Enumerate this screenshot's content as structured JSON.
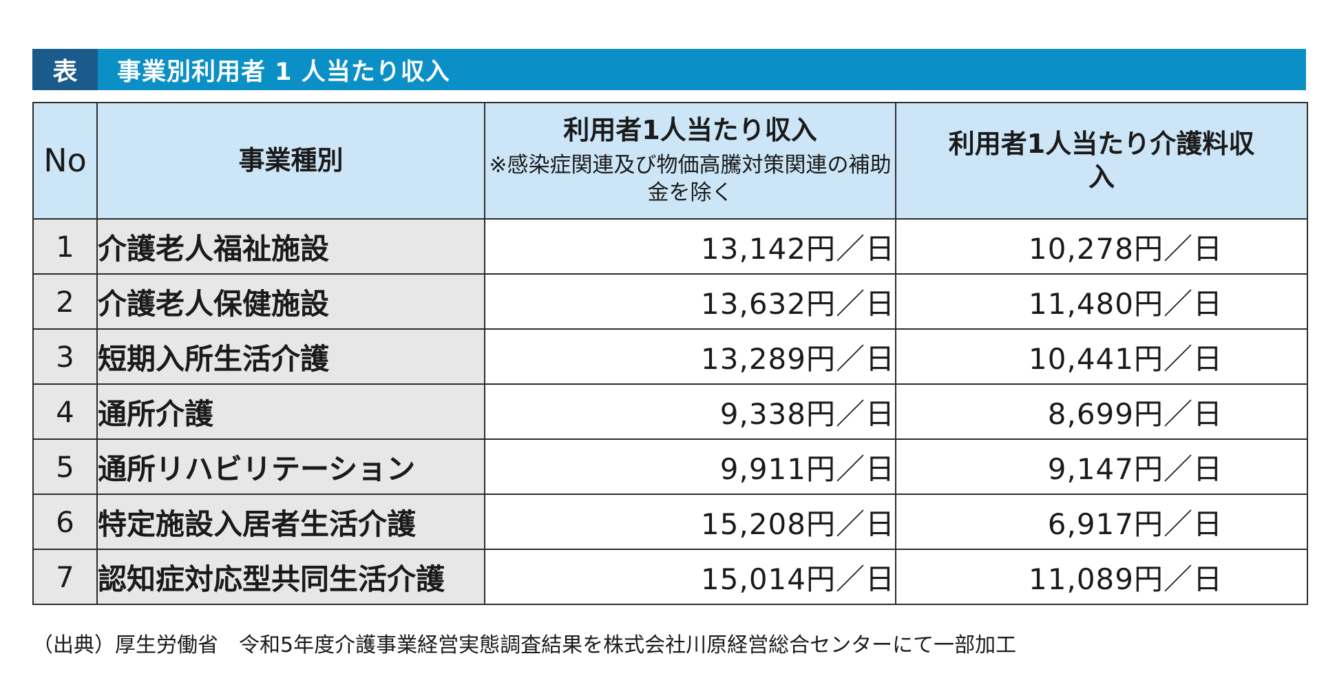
{
  "title": {
    "tag": "表",
    "text": "事業別利用者 1 人当たり収入"
  },
  "table": {
    "headers": {
      "no": "No",
      "type": "事業種別",
      "income_main": "利用者1人当たり収入",
      "income_note": "※感染症関連及び物価高騰対策関連の補助金を除く",
      "care_fee": "利用者1人当たり介護料収入"
    },
    "rows": [
      {
        "no": "1",
        "type": "介護老人福祉施設",
        "income": "13,142円／日",
        "care_fee": "10,278円／日"
      },
      {
        "no": "2",
        "type": "介護老人保健施設",
        "income": "13,632円／日",
        "care_fee": "11,480円／日"
      },
      {
        "no": "3",
        "type": "短期入所生活介護",
        "income": "13,289円／日",
        "care_fee": "10,441円／日"
      },
      {
        "no": "4",
        "type": "通所介護",
        "income": "9,338円／日",
        "care_fee": "8,699円／日"
      },
      {
        "no": "5",
        "type": "通所リハビリテーション",
        "income": "9,911円／日",
        "care_fee": "9,147円／日"
      },
      {
        "no": "6",
        "type": "特定施設入居者生活介護",
        "income": "15,208円／日",
        "care_fee": "6,917円／日"
      },
      {
        "no": "7",
        "type": "認知症対応型共同生活介護",
        "income": "15,014円／日",
        "care_fee": "11,089円／日"
      }
    ]
  },
  "source": "（出典）厚生労働省　令和5年度介護事業経営実態調査結果を株式会社川原経営総合センターにて一部加工",
  "colors": {
    "title_bar": "#0a8fc6",
    "title_tag": "#1a5b8c",
    "header_bg": "#cde6f7",
    "row_label_bg": "#e7e7e7"
  }
}
